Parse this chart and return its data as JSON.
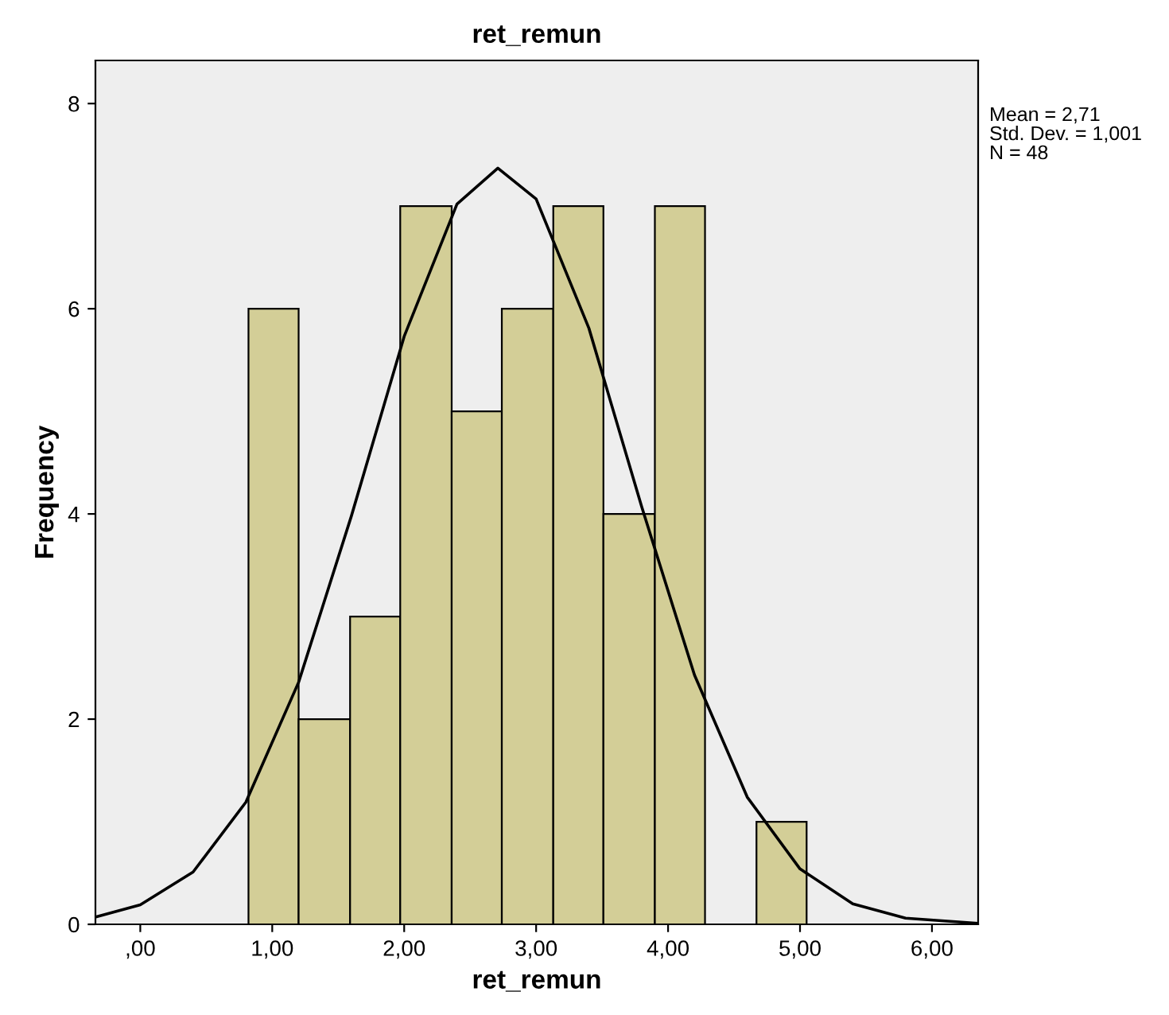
{
  "chart_data": {
    "type": "histogram",
    "title": "ret_remun",
    "xlabel": "ret_remun",
    "ylabel": "Frequency",
    "annotations": [
      "Mean = 2,71",
      "Std. Dev. = 1,001",
      "N = 48"
    ],
    "bins": [
      0.82,
      1.2,
      1.59,
      1.97,
      2.36,
      2.74,
      3.13,
      3.51,
      3.9,
      4.28,
      4.67,
      5.05
    ],
    "series": [
      {
        "color": "#d3ce97",
        "values": [
          6,
          2,
          3,
          7,
          5,
          6,
          7,
          4,
          7,
          0,
          1
        ]
      },
      {
        "type": "line",
        "color": "#000000",
        "x": [
          -0.34,
          0.0,
          0.4,
          0.8,
          1.2,
          1.6,
          2.0,
          2.4,
          2.71,
          3.0,
          3.4,
          3.8,
          4.2,
          4.6,
          5.0,
          5.4,
          5.8,
          6.35
        ],
        "values": [
          0.07,
          0.19,
          0.51,
          1.19,
          2.36,
          3.98,
          5.73,
          7.02,
          7.37,
          7.07,
          5.81,
          4.07,
          2.43,
          1.24,
          0.54,
          0.2,
          0.06,
          0.01
        ]
      }
    ],
    "xlim": [
      -0.34,
      6.35
    ],
    "ylim": [
      0,
      8.42
    ],
    "xticks": [
      {
        "value": 0,
        "label": ",00"
      },
      {
        "value": 1,
        "label": "1,00"
      },
      {
        "value": 2,
        "label": "2,00"
      },
      {
        "value": 3,
        "label": "3,00"
      },
      {
        "value": 4,
        "label": "4,00"
      },
      {
        "value": 5,
        "label": "5,00"
      },
      {
        "value": 6,
        "label": "6,00"
      }
    ],
    "yticks": [
      0,
      2,
      4,
      6,
      8
    ],
    "grid": false,
    "legend": false
  }
}
